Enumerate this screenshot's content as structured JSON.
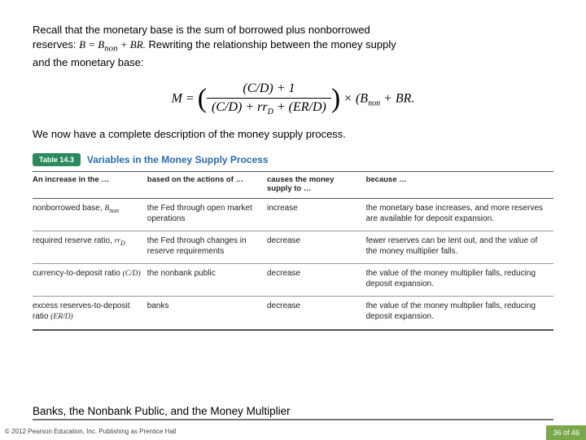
{
  "intro": {
    "line1_a": "Recall that the monetary base is the sum of borrowed plus nonborrowed",
    "line1_b": "reserves: ",
    "math_inline": "B = B_non + BR.",
    "line1_c": " Rewriting the relationship between the money supply",
    "line1_d": "and the monetary base:"
  },
  "equation": {
    "lhs": "M =",
    "num": "(C/D) + 1",
    "den": "(C/D) + rr_D + (ER/D)",
    "rhs_a": "× (B",
    "rhs_sub": "non",
    "rhs_b": " + BR."
  },
  "conclude": "We now have a complete description of the money supply process.",
  "table": {
    "badge": "Table 14.3",
    "title": "Variables in the Money Supply Process",
    "headers": [
      "An increase in the …",
      "based on the actions of …",
      "causes the money supply to …",
      "because …"
    ],
    "rows": [
      {
        "c1_a": "nonborrowed base, ",
        "c1_m": "B_non",
        "c2": "the Fed through open market operations",
        "c3": "increase",
        "c4": "the monetary base increases, and more reserves are available for deposit expansion."
      },
      {
        "c1_a": "required reserve ratio, ",
        "c1_m": "rr_D",
        "c2": "the Fed through changes in reserve requirements",
        "c3": "decrease",
        "c4": "fewer reserves can be lent out, and the value of the money multiplier falls."
      },
      {
        "c1_a": "currency-to-deposit ratio ",
        "c1_m": "(C/D)",
        "c2": "the nonbank public",
        "c3": "decrease",
        "c4": "the value of the money multiplier falls, reducing deposit expansion."
      },
      {
        "c1_a": "excess reserves-to-deposit ratio ",
        "c1_m": "(ER/D)",
        "c2": "banks",
        "c3": "decrease",
        "c4": "the value of the money multiplier falls, reducing deposit expansion."
      }
    ]
  },
  "footer": {
    "title": "Banks, the Nonbank Public, and the Money Multiplier",
    "copyright": "© 2012 Pearson Education, Inc. Publishing as Prentice Hall",
    "page": "36 of 46"
  },
  "colors": {
    "badge_bg": "#2a8a5c",
    "title_blue": "#2a6aaf",
    "page_bg": "#7aa84b"
  }
}
